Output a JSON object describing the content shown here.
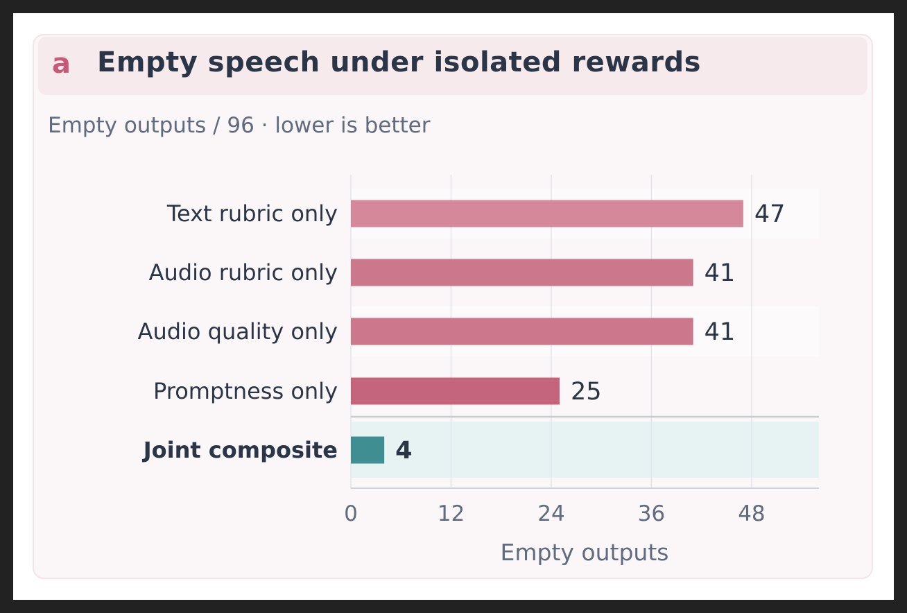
{
  "panel": {
    "letter": "a",
    "title": "Empty speech under isolated rewards",
    "subtitle": "Empty outputs / 96 · lower is better"
  },
  "chart_data": {
    "type": "bar",
    "orientation": "horizontal",
    "categories": [
      "Text rubric only",
      "Audio rubric only",
      "Audio quality only",
      "Promptness only",
      "Joint composite"
    ],
    "values": [
      47,
      41,
      41,
      25,
      4
    ],
    "highlighted_category": "Joint composite",
    "xlabel": "Empty outputs",
    "ylabel": "",
    "xlim": [
      0,
      56
    ],
    "xticks": [
      0,
      12,
      24,
      36,
      48
    ],
    "grid": "vertical",
    "colors": {
      "Text rubric only": "#d4889a",
      "Audio rubric only": "#cc788c",
      "Audio quality only": "#cc788c",
      "Promptness only": "#c5657c",
      "Joint composite": "#3f8f92",
      "highlight_band": "#e6f3f2",
      "row_band": "#fdfafb",
      "grid": "#e1e4ec",
      "separator": "#c8cccf"
    }
  }
}
